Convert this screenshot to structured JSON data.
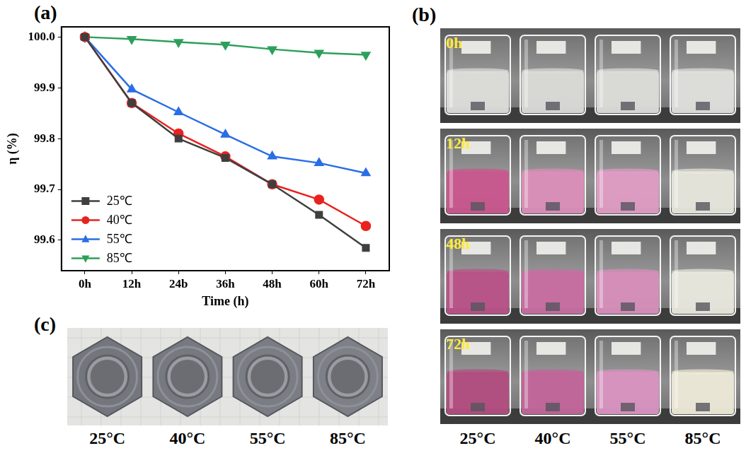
{
  "chart_data": {
    "type": "line",
    "panel_label": "(a)",
    "x_label": "Time (h)",
    "y_label": "η (%)",
    "categories": [
      "0h",
      "12h",
      "24b",
      "36h",
      "48h",
      "60h",
      "72h"
    ],
    "series": [
      {
        "name": "25℃",
        "color": "#3f3f3f",
        "marker": "square",
        "values": [
          100,
          99.87,
          99.8,
          99.762,
          99.71,
          99.65,
          99.585
        ]
      },
      {
        "name": "40℃",
        "color": "#e8231f",
        "marker": "circle",
        "values": [
          100,
          99.87,
          99.81,
          99.765,
          99.71,
          99.68,
          99.628
        ]
      },
      {
        "name": "55℃",
        "color": "#2a6ee6",
        "marker": "triangle",
        "values": [
          100,
          99.897,
          99.852,
          99.808,
          99.765,
          99.752,
          99.732
        ]
      },
      {
        "name": "85℃",
        "color": "#2ca05a",
        "marker": "triangle_down",
        "values": [
          100,
          99.996,
          99.99,
          99.985,
          99.976,
          99.969,
          99.965
        ]
      }
    ],
    "ylim": [
      99.54,
      100.02
    ],
    "yticks": [
      99.6,
      99.7,
      99.8,
      99.9,
      {
        "value": 100,
        "label": "100.0"
      }
    ],
    "grid": false,
    "legend": "lower left"
  },
  "photo_panels": [
    {
      "panel_label": "(b)",
      "rows": [
        {
          "time": "0h",
          "colors": [
            "#d9d9d6",
            "#d6d6d3",
            "#d8d8d5",
            "#dcdcd8"
          ]
        },
        {
          "time": "12h",
          "colors": [
            "#c2407e",
            "#d77fb0",
            "#dc8fbd",
            "#e4e4d8"
          ]
        },
        {
          "time": "48h",
          "colors": [
            "#b03a78",
            "#c15a95",
            "#d27fb2",
            "#e6e6da"
          ]
        },
        {
          "time": "72h",
          "colors": [
            "#a8346f",
            "#b9508b",
            "#d584b8",
            "#ebe7d2"
          ]
        }
      ],
      "captions": [
        "25°C",
        "40°C",
        "55°C",
        "85°C"
      ]
    },
    {
      "panel_label": "(c)",
      "colors": [
        "#74767d",
        "#777980",
        "#7b7d84",
        "#7e8087"
      ],
      "captions": [
        "25°C",
        "40°C",
        "55°C",
        "85°C"
      ]
    }
  ]
}
